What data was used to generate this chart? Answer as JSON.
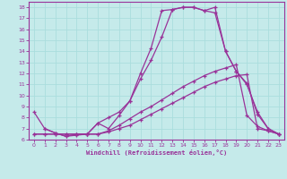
{
  "xlabel": "Windchill (Refroidissement éolien,°C)",
  "xlim": [
    -0.5,
    23.5
  ],
  "ylim": [
    6,
    18.5
  ],
  "xticks": [
    0,
    1,
    2,
    3,
    4,
    5,
    6,
    7,
    8,
    9,
    10,
    11,
    12,
    13,
    14,
    15,
    16,
    17,
    18,
    19,
    20,
    21,
    22,
    23
  ],
  "yticks": [
    6,
    7,
    8,
    9,
    10,
    11,
    12,
    13,
    14,
    15,
    16,
    17,
    18
  ],
  "bg_color": "#c5eaea",
  "line_color": "#993399",
  "grid_color": "#aadddd",
  "line1_x": [
    0,
    1,
    2,
    3,
    4,
    5,
    6,
    7,
    8,
    9,
    10,
    11,
    12,
    13,
    14,
    15,
    16,
    17,
    18,
    19,
    20,
    21,
    22,
    23
  ],
  "line1_y": [
    8.5,
    7.0,
    6.6,
    6.3,
    6.4,
    6.5,
    7.5,
    7.0,
    8.2,
    9.5,
    11.5,
    13.2,
    15.3,
    17.8,
    18.0,
    18.0,
    17.7,
    18.0,
    14.0,
    12.2,
    11.0,
    8.5,
    7.0,
    6.5
  ],
  "line2_x": [
    1,
    2,
    3,
    4,
    5,
    6,
    7,
    8,
    9,
    10,
    11,
    12,
    13,
    14,
    15,
    16,
    17,
    18,
    19,
    20,
    21,
    22,
    23
  ],
  "line2_y": [
    7.0,
    6.6,
    6.3,
    6.5,
    6.5,
    7.5,
    8.0,
    8.5,
    9.5,
    12.0,
    14.3,
    17.7,
    17.8,
    18.0,
    18.0,
    17.7,
    17.5,
    14.0,
    12.2,
    11.1,
    8.3,
    7.0,
    6.5
  ],
  "line3_x": [
    0,
    1,
    2,
    3,
    4,
    5,
    6,
    7,
    8,
    9,
    10,
    11,
    12,
    13,
    14,
    15,
    16,
    17,
    18,
    19,
    20,
    21,
    22,
    23
  ],
  "line3_y": [
    6.5,
    6.5,
    6.5,
    6.5,
    6.5,
    6.5,
    6.5,
    6.7,
    7.0,
    7.3,
    7.8,
    8.3,
    8.8,
    9.3,
    9.8,
    10.3,
    10.8,
    11.2,
    11.5,
    11.8,
    11.9,
    7.0,
    6.8,
    6.5
  ],
  "line4_x": [
    0,
    1,
    2,
    3,
    4,
    5,
    6,
    7,
    8,
    9,
    10,
    11,
    12,
    13,
    14,
    15,
    16,
    17,
    18,
    19,
    20,
    21,
    22,
    23
  ],
  "line4_y": [
    6.5,
    6.5,
    6.5,
    6.5,
    6.5,
    6.5,
    6.5,
    6.8,
    7.3,
    7.9,
    8.5,
    9.0,
    9.6,
    10.2,
    10.8,
    11.3,
    11.8,
    12.2,
    12.5,
    12.8,
    8.2,
    7.2,
    6.8,
    6.5
  ]
}
